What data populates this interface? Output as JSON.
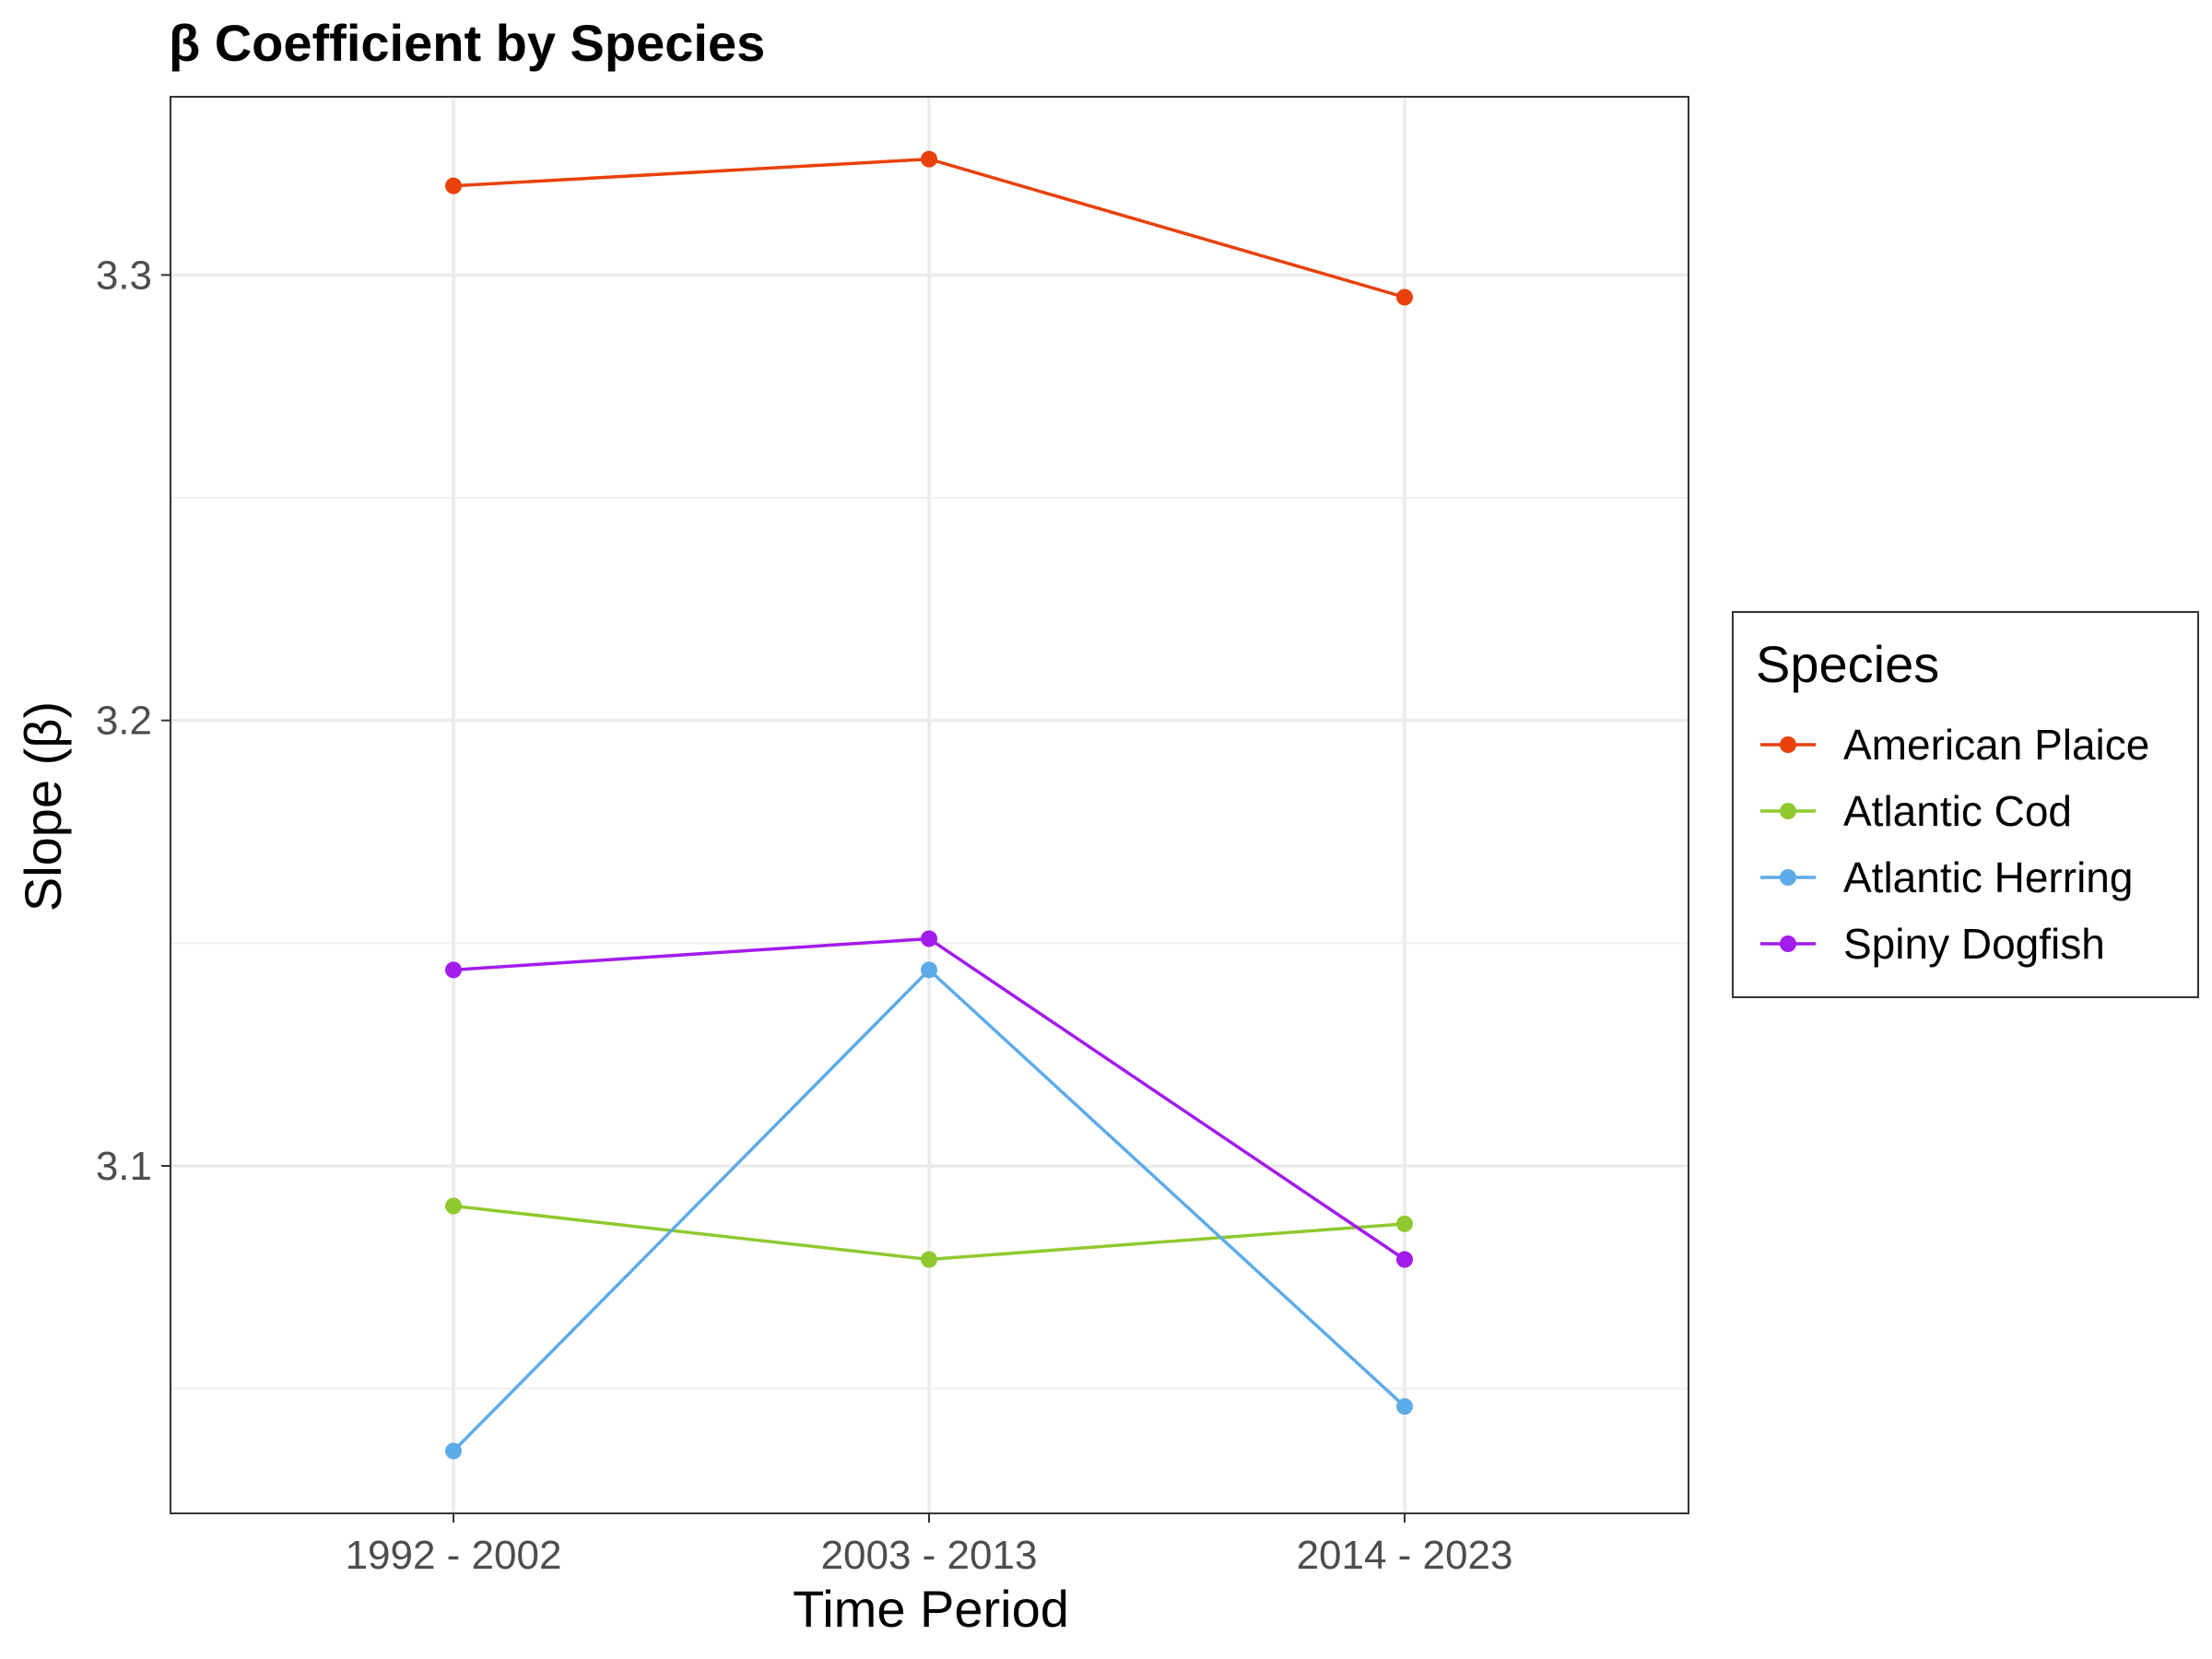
{
  "chart_data": {
    "type": "line",
    "title": "β Coefficient by Species",
    "xlabel": "Time Period",
    "ylabel": "Slope (β)",
    "categories": [
      "1992 - 2002",
      "2003 - 2013",
      "2014 - 2023"
    ],
    "ylim": [
      3.022,
      3.34
    ],
    "yticks": [
      3.1,
      3.2,
      3.3
    ],
    "ytick_labels": [
      "3.1",
      "3.2",
      "3.3"
    ],
    "grid": true,
    "legend": {
      "title": "Species",
      "position": "right"
    },
    "series": [
      {
        "name": "American Plaice",
        "color": "#E8410A",
        "values": [
          3.32,
          3.326,
          3.295
        ]
      },
      {
        "name": "Atlantic Cod",
        "color": "#8FC92F",
        "values": [
          3.091,
          3.079,
          3.087
        ]
      },
      {
        "name": "Atlantic Herring",
        "color": "#5DABE8",
        "values": [
          3.036,
          3.144,
          3.046
        ]
      },
      {
        "name": "Spiny Dogfish",
        "color": "#A21CEB",
        "values": [
          3.144,
          3.151,
          3.079
        ]
      }
    ]
  }
}
